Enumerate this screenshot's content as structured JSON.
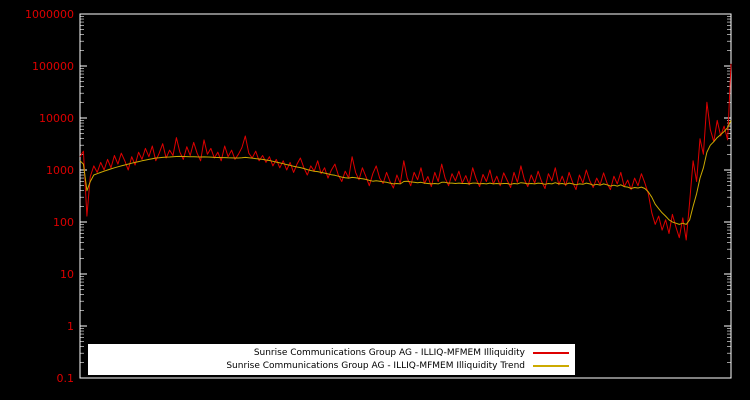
{
  "chart_data": {
    "type": "line",
    "title": "",
    "xlabel": "",
    "ylabel": "",
    "yscale": "log",
    "ylim": [
      0.1,
      1000000
    ],
    "y_ticks": [
      "1000000",
      "100000",
      "10000",
      "1000",
      "100",
      "10",
      "1",
      "0.1"
    ],
    "x_ticks_visible": false,
    "grid": false,
    "background_color": "#000000",
    "axis_color": "#ffffff",
    "tick_label_color": "#dd0000",
    "legend": {
      "position": "bottom-center",
      "background": "#ffffff",
      "text_color": "#000000"
    },
    "series": [
      {
        "name": "Sunrise Communications Group AG - ILLIQ-MFMEM Illiquidity",
        "color": "#dd0000",
        "values": [
          1800,
          2300,
          130,
          750,
          1200,
          900,
          1400,
          1000,
          1600,
          1100,
          1900,
          1300,
          2100,
          1500,
          1000,
          1800,
          1250,
          2200,
          1600,
          2600,
          1800,
          2900,
          1500,
          2100,
          3200,
          1700,
          2400,
          1900,
          4200,
          2200,
          1600,
          2800,
          1900,
          3400,
          2100,
          1500,
          3800,
          2000,
          2600,
          1700,
          2200,
          1500,
          2900,
          1800,
          2400,
          1600,
          2000,
          2700,
          4500,
          2100,
          1700,
          2300,
          1500,
          1900,
          1400,
          1800,
          1200,
          1600,
          1100,
          1500,
          1000,
          1400,
          900,
          1300,
          1700,
          1100,
          800,
          1200,
          950,
          1500,
          850,
          1100,
          700,
          1000,
          1300,
          800,
          600,
          950,
          700,
          1800,
          900,
          650,
          1100,
          750,
          500,
          850,
          1200,
          700,
          550,
          900,
          600,
          450,
          800,
          550,
          1500,
          700,
          500,
          900,
          650,
          1100,
          550,
          750,
          480,
          900,
          600,
          1300,
          700,
          500,
          850,
          620,
          950,
          560,
          780,
          520,
          1100,
          680,
          480,
          820,
          600,
          1000,
          540,
          760,
          500,
          880,
          640,
          460,
          900,
          580,
          1200,
          660,
          480,
          800,
          560,
          950,
          600,
          440,
          850,
          620,
          1100,
          520,
          760,
          500,
          900,
          580,
          420,
          800,
          560,
          1000,
          620,
          460,
          700,
          520,
          880,
          560,
          420,
          760,
          540,
          900,
          480,
          640,
          420,
          700,
          500,
          850,
          560,
          350,
          150,
          90,
          130,
          70,
          110,
          60,
          140,
          80,
          50,
          120,
          45,
          250,
          1500,
          600,
          4000,
          2000,
          20000,
          6000,
          3500,
          9000,
          4500,
          7000,
          3800,
          110000
        ]
      },
      {
        "name": "Sunrise Communications Group AG - ILLIQ-MFMEM Illiquidity Trend",
        "color": "#ccaa00",
        "values": [
          1500,
          1300,
          400,
          600,
          800,
          850,
          900,
          950,
          1000,
          1050,
          1100,
          1150,
          1200,
          1250,
          1300,
          1350,
          1400,
          1450,
          1500,
          1550,
          1600,
          1650,
          1700,
          1720,
          1750,
          1770,
          1780,
          1800,
          1820,
          1830,
          1820,
          1810,
          1800,
          1800,
          1790,
          1780,
          1790,
          1780,
          1770,
          1750,
          1740,
          1730,
          1730,
          1720,
          1710,
          1700,
          1700,
          1720,
          1750,
          1720,
          1690,
          1660,
          1630,
          1600,
          1560,
          1520,
          1470,
          1420,
          1370,
          1320,
          1270,
          1230,
          1180,
          1140,
          1110,
          1070,
          1020,
          980,
          950,
          930,
          900,
          870,
          840,
          810,
          790,
          760,
          730,
          710,
          700,
          720,
          710,
          690,
          680,
          660,
          630,
          610,
          620,
          610,
          590,
          580,
          560,
          540,
          550,
          540,
          600,
          610,
          590,
          580,
          570,
          580,
          560,
          550,
          540,
          550,
          540,
          580,
          580,
          560,
          560,
          550,
          560,
          550,
          550,
          540,
          560,
          560,
          540,
          550,
          540,
          560,
          540,
          550,
          540,
          550,
          550,
          530,
          550,
          540,
          570,
          560,
          540,
          550,
          540,
          560,
          550,
          530,
          550,
          540,
          570,
          540,
          550,
          530,
          560,
          540,
          520,
          540,
          530,
          560,
          540,
          510,
          530,
          510,
          540,
          520,
          490,
          510,
          490,
          520,
          480,
          470,
          440,
          460,
          450,
          470,
          440,
          380,
          300,
          220,
          180,
          150,
          130,
          110,
          100,
          95,
          90,
          95,
          90,
          110,
          200,
          350,
          700,
          1100,
          2200,
          3000,
          3500,
          4200,
          4800,
          5500,
          6500,
          9000
        ]
      }
    ]
  }
}
